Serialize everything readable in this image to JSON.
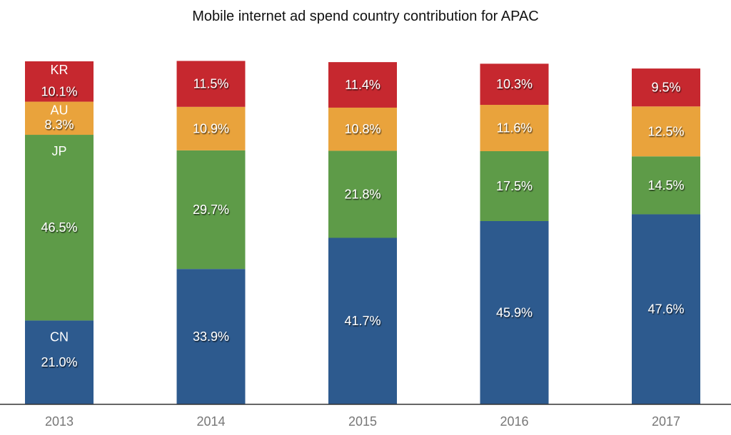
{
  "chart_data": {
    "type": "bar",
    "stacked": true,
    "title": "Mobile internet ad spend country contribution for APAC",
    "xlabel": "",
    "ylabel": "",
    "ylim": [
      0,
      86
    ],
    "grid": false,
    "categories": [
      "2013",
      "2014",
      "2015",
      "2016",
      "2017"
    ],
    "series": [
      {
        "name": "CN",
        "color": "#2d5a8e",
        "values": [
          21.0,
          33.9,
          41.7,
          45.9,
          47.6
        ]
      },
      {
        "name": "JP",
        "color": "#5e9b48",
        "values": [
          46.5,
          29.7,
          21.8,
          17.5,
          14.5
        ]
      },
      {
        "name": "AU",
        "color": "#e9a33c",
        "values": [
          8.3,
          10.9,
          10.8,
          11.6,
          12.5
        ]
      },
      {
        "name": "KR",
        "color": "#c6282f",
        "values": [
          10.1,
          11.5,
          11.4,
          10.3,
          9.5
        ]
      }
    ],
    "series_names_shown_on": "2013"
  }
}
